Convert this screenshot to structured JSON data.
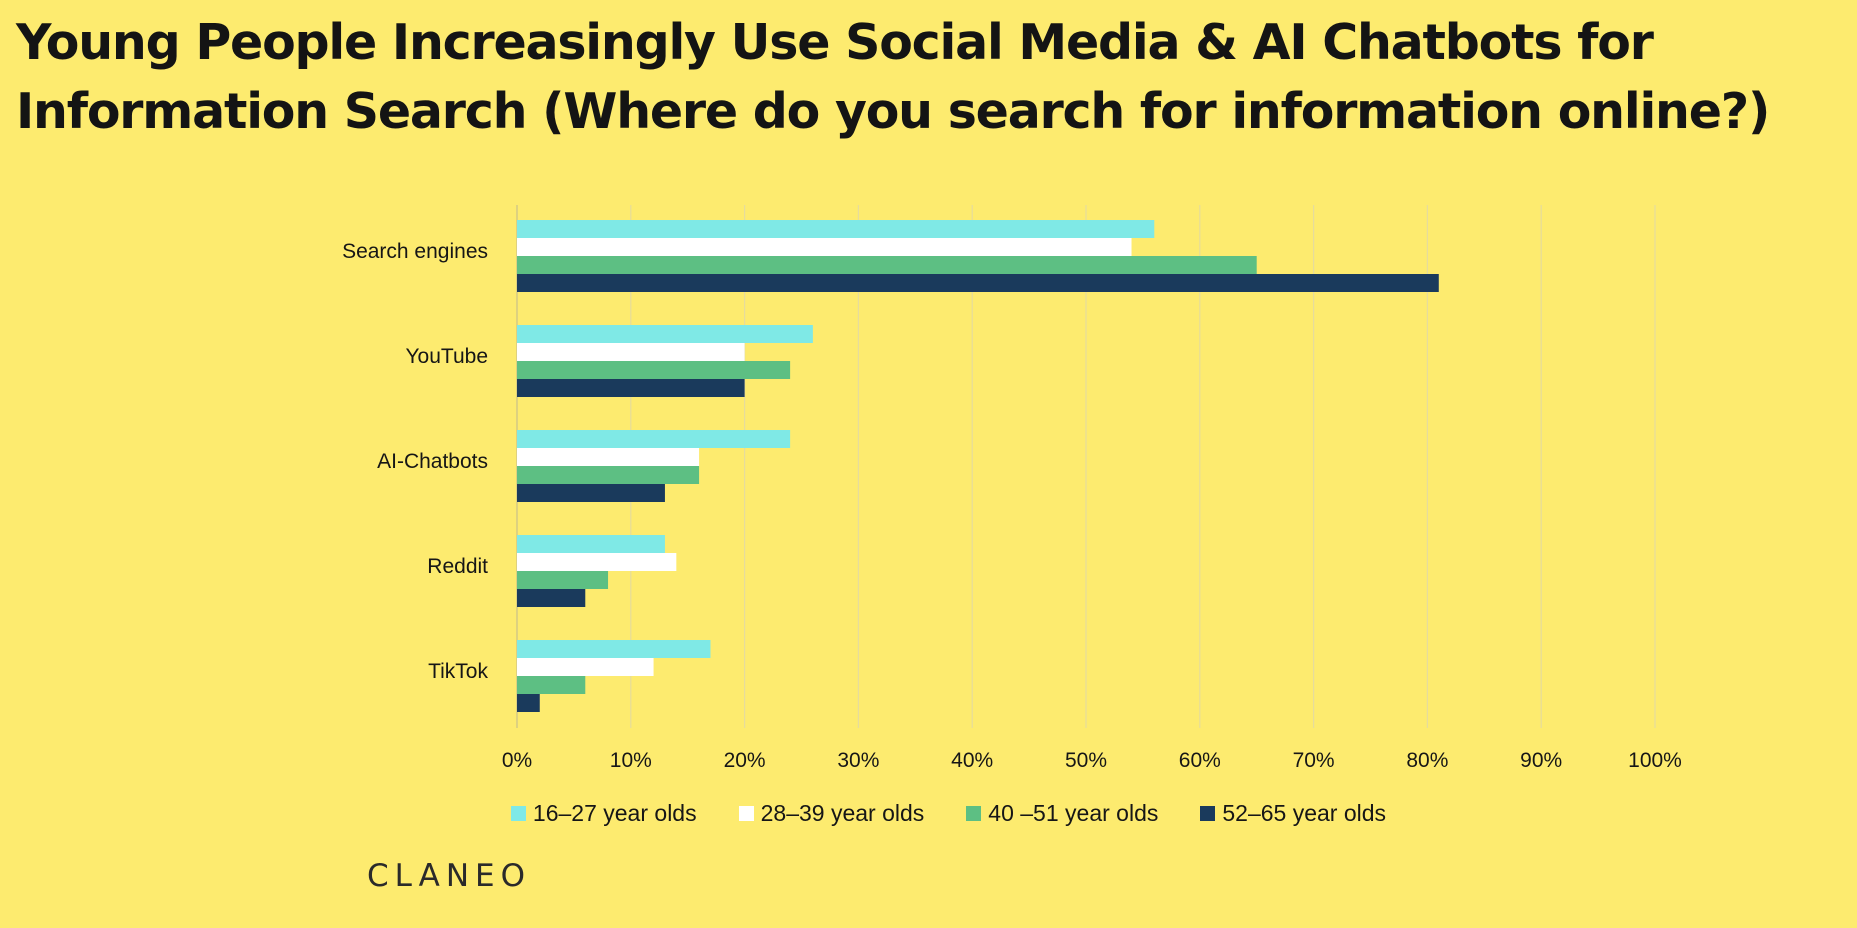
{
  "title": "Young People Increasingly Use Social Media & AI Chatbots for Information Search (Where do you search for information online?)",
  "brand": "CLANEO",
  "chart_data": {
    "type": "bar",
    "orientation": "horizontal",
    "categories": [
      "Search engines",
      "YouTube",
      "AI-Chatbots",
      "Reddit",
      "TikTok"
    ],
    "series": [
      {
        "name": "16–27 year olds",
        "color": "#7fe9e6",
        "values": [
          56,
          26,
          24,
          13,
          17
        ]
      },
      {
        "name": "28–39 year olds",
        "color": "#ffffff",
        "values": [
          54,
          20,
          16,
          14,
          12
        ]
      },
      {
        "name": "40 –51 year olds",
        "color": "#5dbf83",
        "values": [
          65,
          24,
          16,
          8,
          6
        ]
      },
      {
        "name": "52–65 year olds",
        "color": "#1a3a5c",
        "values": [
          81,
          20,
          13,
          6,
          2
        ]
      }
    ],
    "xlim": [
      0,
      100
    ],
    "xticks": [
      0,
      10,
      20,
      30,
      40,
      50,
      60,
      70,
      80,
      90,
      100
    ],
    "xtick_labels": [
      "0%",
      "10%",
      "20%",
      "30%",
      "40%",
      "50%",
      "60%",
      "70%",
      "80%",
      "90%",
      "100%"
    ],
    "grid": true,
    "legend_position": "bottom-center"
  }
}
